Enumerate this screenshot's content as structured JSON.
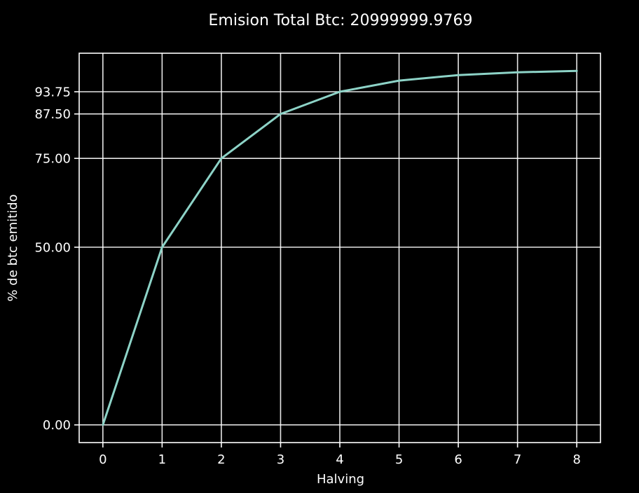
{
  "chart_data": {
    "type": "line",
    "title": "Emision Total Btc: 20999999.9769",
    "xlabel": "Halving",
    "ylabel": "% de btc emitido",
    "x": [
      0,
      1,
      2,
      3,
      4,
      5,
      6,
      7,
      8
    ],
    "series": [
      {
        "values": [
          0,
          50,
          75,
          87.5,
          93.75,
          96.875,
          98.4375,
          99.21875,
          99.609375
        ],
        "color": "#8dd3c7"
      }
    ],
    "xticks": [
      0,
      1,
      2,
      3,
      4,
      5,
      6,
      7,
      8
    ],
    "xtick_labels": [
      "0",
      "1",
      "2",
      "3",
      "4",
      "5",
      "6",
      "7",
      "8"
    ],
    "yticks": [
      0,
      50,
      75,
      87.5,
      93.75
    ],
    "ytick_labels": [
      "0.00",
      "50.00",
      "75.00",
      "87.50",
      "93.75"
    ],
    "xlim": [
      -0.4,
      8.4
    ],
    "ylim": [
      -4.98,
      104.59
    ],
    "grid": true,
    "background": "#000000",
    "foreground": "#ffffff"
  }
}
